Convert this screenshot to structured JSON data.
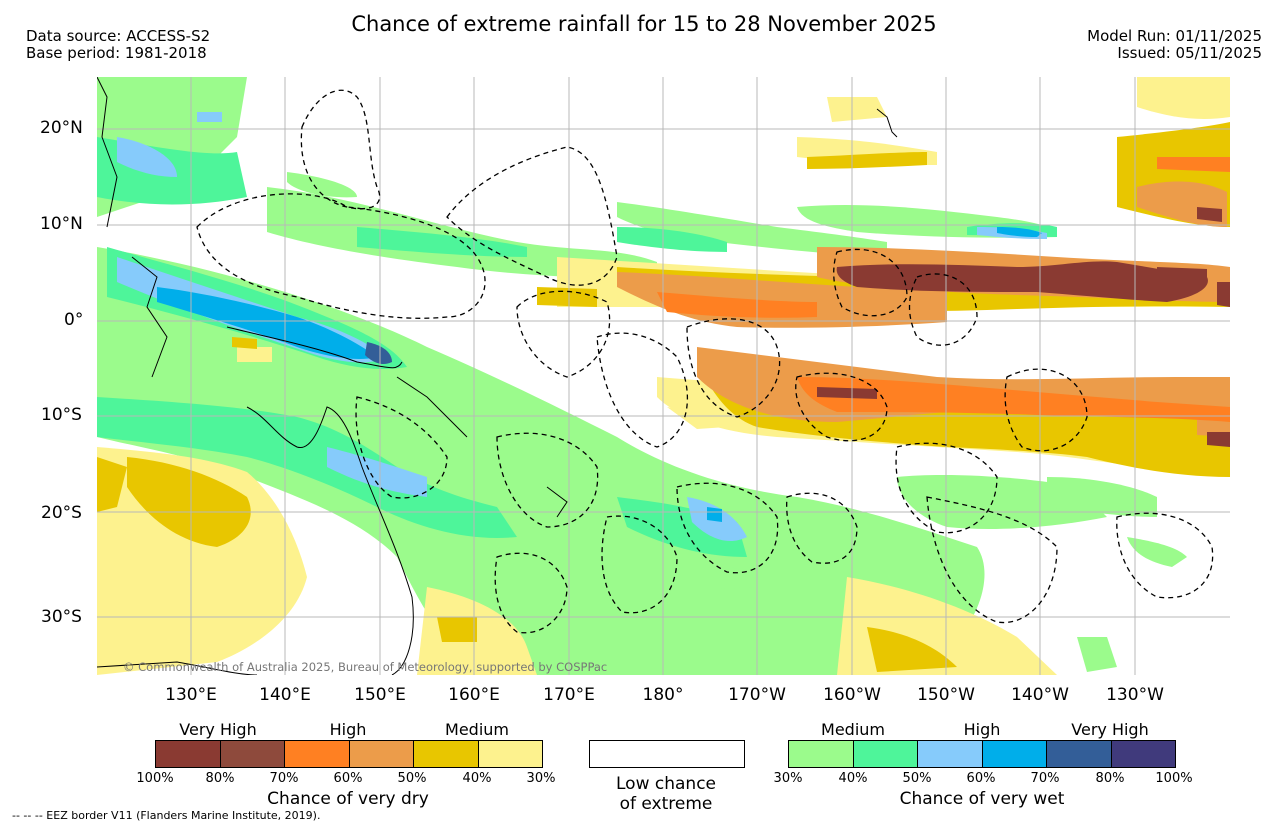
{
  "header": {
    "title": "Chance of extreme rainfall for 15 to 28 November 2025",
    "data_source": "Data source: ACCESS-S2",
    "base_period": "Base period: 1981-2018",
    "model_run": "Model Run: 01/11/2025",
    "issued": "Issued: 05/11/2025"
  },
  "map": {
    "lat_labels": [
      "20°N",
      "10°N",
      "0°",
      "10°S",
      "20°S",
      "30°S"
    ],
    "lon_labels": [
      "130°E",
      "140°E",
      "150°E",
      "160°E",
      "170°E",
      "180°",
      "170°W",
      "160°W",
      "150°W",
      "140°W",
      "130°W"
    ],
    "copyright": "© Commonwealth of Australia 2025, Bureau of Meteorology, supported by COSPPac"
  },
  "legend": {
    "dry": {
      "categories": [
        "Very High",
        "High",
        "Medium"
      ],
      "colors": [
        "#8a3a32",
        "#8e4a3c",
        "#ff8022",
        "#ec9c4a",
        "#e8c600",
        "#fdf28e"
      ],
      "ticks": [
        "100%",
        "80%",
        "70%",
        "60%",
        "50%",
        "40%",
        "30%"
      ],
      "caption": "Chance of very dry"
    },
    "neutral": {
      "color": "#ffffff",
      "caption_line1": "Low chance",
      "caption_line2": "of extreme"
    },
    "wet": {
      "categories": [
        "Medium",
        "High",
        "Very High"
      ],
      "colors": [
        "#9bfb8c",
        "#4ef59a",
        "#86cbfb",
        "#00aeea",
        "#335e98",
        "#403a7c"
      ],
      "ticks": [
        "30%",
        "40%",
        "50%",
        "60%",
        "70%",
        "80%",
        "100%"
      ],
      "caption": "Chance of very wet"
    }
  },
  "footnote": "--  --  -- EEZ border V11 (Flanders Marine Institute, 2019)."
}
